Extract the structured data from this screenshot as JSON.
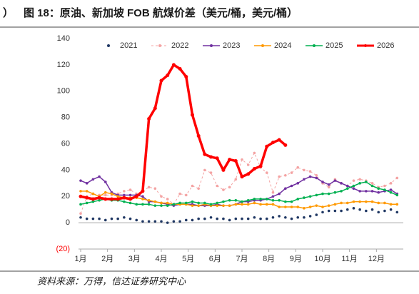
{
  "fragment": "）",
  "chart_data": {
    "type": "line",
    "title": "图 18：原油、新加坡 FOB 航煤价差（美元/桶，美元/桶）",
    "source": "资料来源：万得，信达证券研究中心",
    "x": [
      0,
      1,
      2,
      3,
      4,
      5,
      6,
      7,
      8,
      9,
      10,
      11,
      12,
      13,
      14,
      15,
      16,
      17,
      18,
      19,
      20,
      21,
      22,
      23,
      24,
      25,
      26,
      27,
      28,
      29,
      30,
      31,
      32,
      33,
      34,
      35,
      36,
      37,
      38,
      39,
      40,
      41,
      42,
      43,
      44,
      45,
      46,
      47,
      48,
      49,
      50,
      51
    ],
    "xlim": [
      0,
      52
    ],
    "xticks": [
      {
        "value": 0,
        "label": "1月"
      },
      {
        "value": 4.33,
        "label": "2月"
      },
      {
        "value": 8.67,
        "label": "3月"
      },
      {
        "value": 13,
        "label": "4月"
      },
      {
        "value": 17.33,
        "label": "5月"
      },
      {
        "value": 21.67,
        "label": "6月"
      },
      {
        "value": 26,
        "label": "7月"
      },
      {
        "value": 30.33,
        "label": "8月"
      },
      {
        "value": 34.67,
        "label": "9月"
      },
      {
        "value": 39,
        "label": "10月"
      },
      {
        "value": 43.33,
        "label": "11月"
      },
      {
        "value": 47.67,
        "label": "12月"
      }
    ],
    "ylim": [
      -20,
      140
    ],
    "yticks": [
      {
        "value": -20,
        "label": "(20)"
      },
      0,
      20,
      40,
      60,
      80,
      100,
      120,
      140
    ],
    "negative_tick_color": "#ff0000",
    "legend": "top",
    "series": [
      {
        "name": "2021",
        "color": "#203864",
        "line_style": "none",
        "width": 1,
        "values": [
          4,
          3,
          3,
          3,
          2,
          3,
          3,
          4,
          3,
          2,
          1,
          1,
          1,
          1,
          0,
          1,
          1,
          2,
          2,
          3,
          3,
          4,
          3,
          3,
          2,
          3,
          3,
          3,
          4,
          3,
          3,
          4,
          5,
          4,
          3,
          4,
          4,
          5,
          6,
          8,
          9,
          9,
          9,
          10,
          11,
          10,
          9,
          10,
          8,
          9,
          10,
          8
        ]
      },
      {
        "name": "2022",
        "color": "#f4a3a3",
        "line_style": "dashed",
        "width": 1,
        "values": [
          7,
          20,
          22,
          21,
          21,
          21,
          22,
          24,
          25,
          22,
          24,
          27,
          26,
          20,
          18,
          14,
          22,
          21,
          28,
          26,
          40,
          38,
          28,
          25,
          27,
          33,
          48,
          44,
          53,
          42,
          38,
          23,
          35,
          36,
          38,
          42,
          40,
          39,
          36,
          30,
          27,
          33,
          30,
          28,
          32,
          33,
          32,
          30,
          27,
          28,
          30,
          34
        ]
      },
      {
        "name": "2023",
        "color": "#7030a0",
        "line_style": "solid",
        "width": 1.5,
        "values": [
          32,
          30,
          33,
          35,
          31,
          23,
          21,
          21,
          21,
          21,
          20,
          16,
          16,
          15,
          14,
          13,
          14,
          14,
          14,
          13,
          13,
          13,
          14,
          13,
          13,
          14,
          16,
          16,
          17,
          17,
          18,
          20,
          22,
          26,
          28,
          30,
          33,
          35,
          34,
          31,
          29,
          32,
          30,
          28,
          26,
          24,
          24,
          24,
          23,
          24,
          25,
          22
        ]
      },
      {
        "name": "2024",
        "color": "#ff9900",
        "line_style": "solid",
        "width": 1.5,
        "values": [
          24,
          24,
          22,
          20,
          23,
          22,
          20,
          19,
          19,
          19,
          18,
          17,
          16,
          15,
          15,
          14,
          14,
          14,
          13,
          13,
          14,
          13,
          13,
          13,
          13,
          14,
          14,
          14,
          15,
          14,
          14,
          14,
          12,
          12,
          12,
          12,
          11,
          12,
          13,
          12,
          13,
          14,
          15,
          15,
          16,
          16,
          16,
          16,
          15,
          15,
          14,
          14
        ]
      },
      {
        "name": "2025",
        "color": "#00b050",
        "line_style": "solid",
        "width": 1.5,
        "values": [
          14,
          15,
          16,
          17,
          18,
          17,
          17,
          16,
          15,
          14,
          14,
          14,
          13,
          13,
          13,
          14,
          15,
          15,
          16,
          15,
          15,
          14,
          15,
          16,
          17,
          17,
          16,
          17,
          18,
          18,
          18,
          17,
          17,
          16,
          16,
          18,
          19,
          20,
          21,
          22,
          22,
          23,
          24,
          26,
          28,
          30,
          31,
          28,
          26,
          25,
          23,
          21
        ]
      },
      {
        "name": "2026",
        "color": "#ff0000",
        "line_style": "solid",
        "width": 3.5,
        "values": [
          20,
          19,
          18,
          19,
          18,
          18,
          18,
          19,
          18,
          20,
          24,
          79,
          87,
          108,
          112,
          120,
          117,
          111,
          82,
          66,
          52,
          50,
          49,
          40,
          48,
          47,
          35,
          37,
          41,
          43,
          58,
          61,
          63,
          59,
          null,
          null,
          null,
          null,
          null,
          null,
          null,
          null,
          null,
          null,
          null,
          null,
          null,
          null,
          null,
          null,
          null,
          null
        ]
      }
    ]
  }
}
